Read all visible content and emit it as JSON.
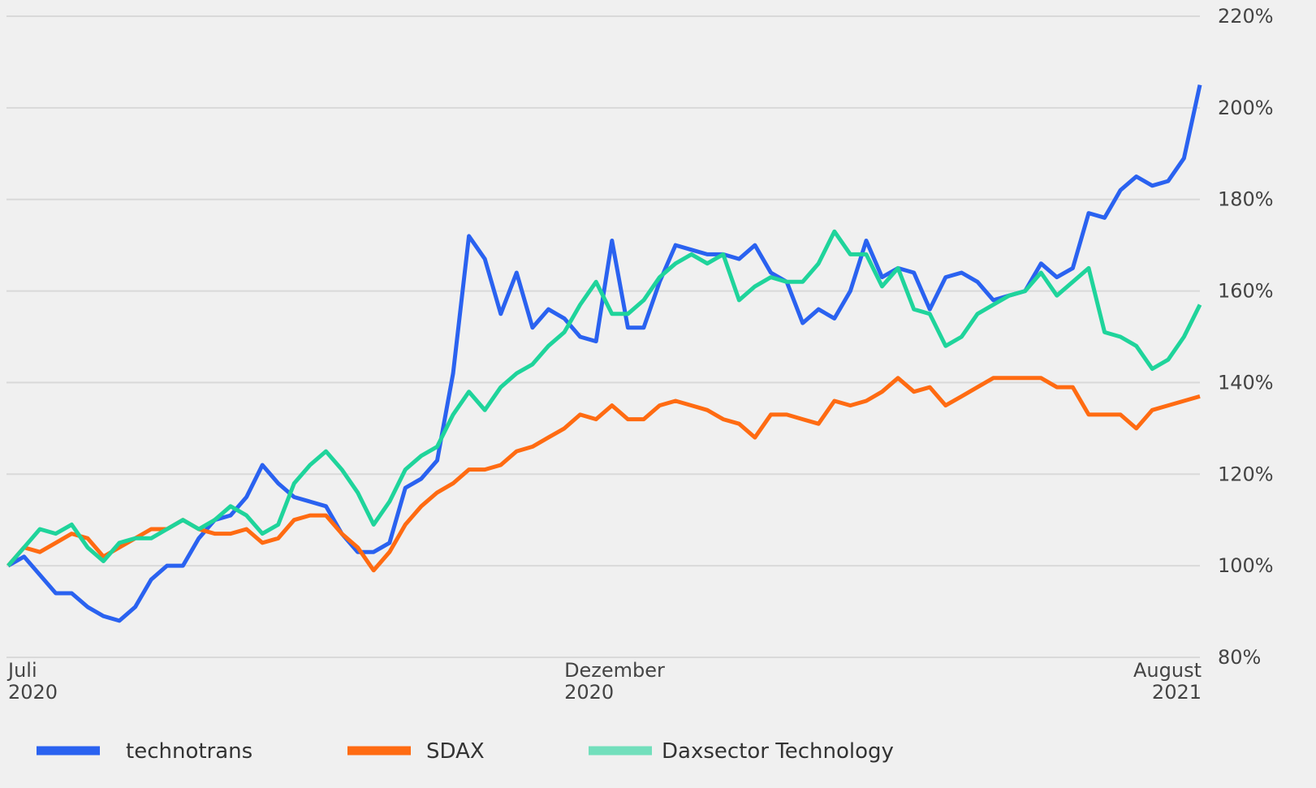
{
  "chart_data": {
    "type": "line",
    "categories": [
      "Juli\n2020",
      null,
      null,
      null,
      null,
      null,
      null,
      null,
      null,
      null,
      null,
      null,
      null,
      null,
      null,
      null,
      null,
      null,
      null,
      null,
      null,
      null,
      null,
      null,
      null,
      null,
      null,
      null,
      null,
      null,
      null,
      null,
      null,
      null,
      null,
      "Dezember\n2020",
      null,
      null,
      null,
      null,
      null,
      null,
      null,
      null,
      null,
      null,
      null,
      null,
      null,
      null,
      null,
      null,
      null,
      null,
      null,
      null,
      null,
      null,
      null,
      null,
      null,
      null,
      null,
      null,
      null,
      null,
      null,
      null,
      null,
      null,
      null,
      null,
      null,
      null,
      null,
      "August\n2021"
    ],
    "series": [
      {
        "name": "technotrans",
        "color": "#2a62f0",
        "values": [
          100,
          102,
          98,
          94,
          94,
          91,
          89,
          88,
          91,
          97,
          100,
          100,
          106,
          110,
          111,
          115,
          122,
          118,
          115,
          114,
          113,
          107,
          103,
          103,
          105,
          117,
          119,
          123,
          142,
          172,
          167,
          155,
          164,
          152,
          156,
          154,
          150,
          149,
          171,
          152,
          152,
          162,
          170,
          169,
          168,
          168,
          167,
          170,
          164,
          162,
          153,
          156,
          154,
          160,
          171,
          163,
          165,
          164,
          156,
          163,
          164,
          162,
          158,
          159,
          160,
          166,
          163,
          165,
          177,
          176,
          182,
          185,
          183,
          184,
          189,
          205
        ]
      },
      {
        "name": "SDAX",
        "color": "#ff6b12",
        "values": [
          100,
          104,
          103,
          105,
          107,
          106,
          102,
          104,
          106,
          108,
          108,
          110,
          108,
          107,
          107,
          108,
          105,
          106,
          110,
          111,
          111,
          107,
          104,
          99,
          103,
          109,
          113,
          116,
          118,
          121,
          121,
          122,
          125,
          126,
          128,
          130,
          133,
          132,
          135,
          132,
          132,
          135,
          136,
          135,
          134,
          132,
          131,
          128,
          133,
          133,
          132,
          131,
          136,
          135,
          136,
          138,
          141,
          138,
          139,
          135,
          137,
          139,
          141,
          141,
          141,
          141,
          139,
          139,
          133,
          133,
          133,
          130,
          134,
          135,
          136,
          137
        ]
      },
      {
        "name": "Daxsector Technology",
        "color": "#1fd49b",
        "values": [
          100,
          104,
          108,
          107,
          109,
          104,
          101,
          105,
          106,
          106,
          108,
          110,
          108,
          110,
          113,
          111,
          107,
          109,
          118,
          122,
          125,
          121,
          116,
          109,
          114,
          121,
          124,
          126,
          133,
          138,
          134,
          139,
          142,
          144,
          148,
          151,
          157,
          162,
          155,
          155,
          158,
          163,
          166,
          168,
          166,
          168,
          158,
          161,
          163,
          162,
          162,
          166,
          173,
          168,
          168,
          161,
          165,
          156,
          155,
          148,
          150,
          155,
          157,
          159,
          160,
          164,
          159,
          162,
          165,
          151,
          150,
          148,
          143,
          145,
          150,
          157
        ]
      }
    ],
    "ylim": [
      80,
      220
    ],
    "yticks": [
      {
        "value": 80,
        "label": "80%"
      },
      {
        "value": 100,
        "label": "100%"
      },
      {
        "value": 120,
        "label": "120%"
      },
      {
        "value": 140,
        "label": "140%"
      },
      {
        "value": 160,
        "label": "160%"
      },
      {
        "value": 180,
        "label": "180%"
      },
      {
        "value": 200,
        "label": "200%"
      },
      {
        "value": 220,
        "label": "220%"
      }
    ],
    "grid": true,
    "legend": "bottom"
  }
}
